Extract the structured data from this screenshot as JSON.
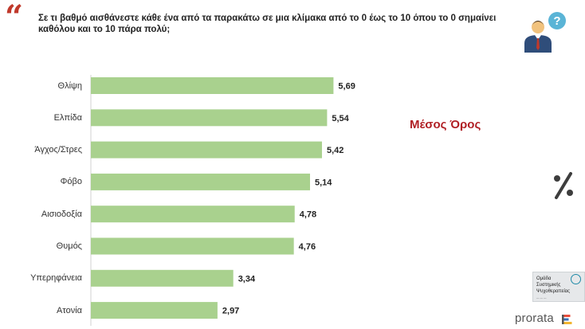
{
  "header": {
    "question": "Σε τι βαθμό αισθάνεστε κάθε ένα από τα παρακάτω σε μια κλίμακα από το 0 έως το 10 όπου το 0 σημαίνει καθόλου και το 10 πάρα πολύ;"
  },
  "icons": {
    "quote": "quote-icon",
    "person": "person-with-question-icon",
    "percent": "percent-icon"
  },
  "legend_note": "Μέσος Όρος",
  "chart_data": {
    "type": "bar",
    "orientation": "horizontal",
    "categories": [
      "Θλίψη",
      "Ελπίδα",
      "Άγχος/Στρες",
      "Φόβο",
      "Αισιοδοξία",
      "Θυμός",
      "Υπερηφάνεια",
      "Ατονία"
    ],
    "values": [
      5.69,
      5.54,
      5.42,
      5.14,
      4.78,
      4.76,
      3.34,
      2.97
    ],
    "value_labels": [
      "5,69",
      "5,54",
      "5,42",
      "5,14",
      "4,78",
      "4,76",
      "3,34",
      "2,97"
    ],
    "xlim": [
      0,
      10
    ],
    "bar_color": "#a9d18e",
    "grid": false
  },
  "footer": {
    "group_logo_lines": [
      "Ομάδα",
      "Συστημικής",
      "Ψυχοθεραπείας"
    ],
    "brand": "prorata",
    "brand_colors": [
      "#e84e3c",
      "#3a6fb5",
      "#f2b632"
    ]
  }
}
